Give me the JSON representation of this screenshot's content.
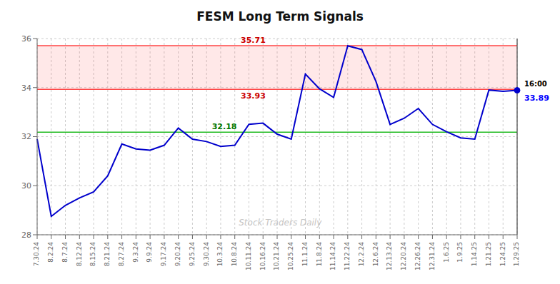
{
  "chart_data": {
    "type": "line",
    "title": "FESM Long Term Signals",
    "categories": [
      "7.30.24",
      "8.2.24",
      "8.7.24",
      "8.12.24",
      "8.15.24",
      "8.21.24",
      "8.27.24",
      "9.3.24",
      "9.9.24",
      "9.17.24",
      "9.20.24",
      "9.25.24",
      "9.30.24",
      "10.3.24",
      "10.8.24",
      "10.11.24",
      "10.16.24",
      "10.21.24",
      "10.25.24",
      "11.1.24",
      "11.8.24",
      "11.14.24",
      "11.22.24",
      "12.2.24",
      "12.6.24",
      "12.13.24",
      "12.20.24",
      "12.26.24",
      "12.31.24",
      "1.6.25",
      "1.9.25",
      "1.14.25",
      "1.21.25",
      "1.24.25",
      "1.29.25"
    ],
    "values": [
      31.9,
      28.75,
      29.2,
      29.5,
      29.75,
      30.4,
      31.7,
      31.5,
      31.45,
      31.65,
      32.35,
      31.9,
      31.8,
      31.6,
      31.65,
      32.5,
      32.55,
      32.1,
      31.9,
      34.55,
      33.95,
      33.6,
      35.7,
      35.55,
      34.25,
      32.5,
      32.75,
      33.15,
      32.5,
      32.2,
      31.95,
      31.9,
      33.9,
      33.85,
      33.89
    ],
    "color": "#0000cc",
    "ylim": [
      28,
      36
    ],
    "yticks": [
      28,
      30,
      32,
      34,
      36
    ],
    "grid": true,
    "band": {
      "y1": 33.93,
      "y2": 35.71,
      "color": "#ff4444"
    },
    "hlines": [
      {
        "y": 35.71,
        "color": "#ff4444",
        "label": "35.71",
        "label_color": "#cc0000",
        "label_position": "above"
      },
      {
        "y": 33.93,
        "color": "#ff4444",
        "label": "33.93",
        "label_color": "#cc0000",
        "label_position": "below"
      },
      {
        "y": 32.18,
        "color": "#22bb22",
        "label": "32.18",
        "label_color": "#007700",
        "label_position": "above"
      }
    ],
    "last_point": {
      "x": "1.29.25",
      "y": 33.89,
      "color": "#444444",
      "time_label": "16:00",
      "value_label": "33.89",
      "value_label_color": "#0000ff"
    },
    "watermark": {
      "text": "Stock Traders Daily",
      "color": "#bbbbbb"
    }
  }
}
